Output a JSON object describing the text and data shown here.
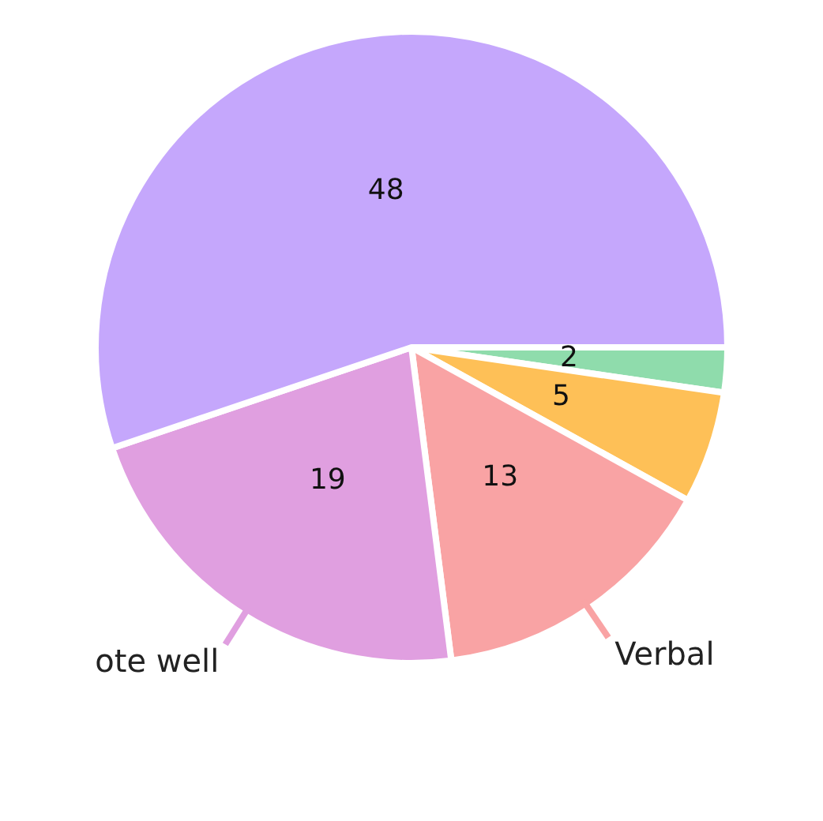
{
  "chart_data": {
    "type": "pie",
    "categories": [
      null,
      null,
      "Verbal",
      "ote well",
      null
    ],
    "values": [
      2,
      5,
      13,
      19,
      48
    ],
    "colors": [
      "#8fdcac",
      "#fec057",
      "#f9a3a4",
      "#e09fe0",
      "#c5a7fc"
    ],
    "data_labels": true,
    "legend": false
  }
}
